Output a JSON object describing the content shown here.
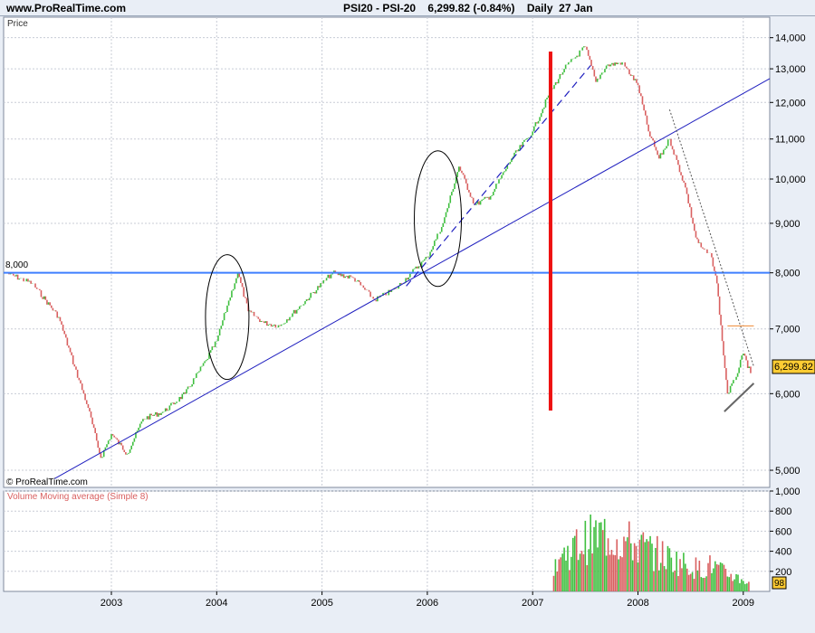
{
  "header": {
    "site": "www.ProRealTime.com",
    "symbol": "PSI20 - PSI-20",
    "last": "6,299.82",
    "change": "(-0.84%)",
    "period": "Daily",
    "date": "27 Jan"
  },
  "price_panel": {
    "label": "Price",
    "copyright": "© ProRealTime.com",
    "level_label": "8,000",
    "last_badge": "6,299.82"
  },
  "volume_panel": {
    "label": "Volume Moving average (Simple 8)",
    "last_badge": "98"
  },
  "colors": {
    "up": "#3fbf3f",
    "down": "#d96060",
    "trend": "#1f1fbf",
    "level": "#3f7fff",
    "marker": "#ee1111",
    "badge": "#ffcc33"
  },
  "chart_data": [
    {
      "type": "line",
      "title": "PSI20 - PSI-20",
      "ylabel": "Price",
      "yscale": "log",
      "ylim": [
        4800,
        14700
      ],
      "x_ticks": [
        "2003",
        "2004",
        "2005",
        "2006",
        "2007",
        "2008",
        "2009"
      ],
      "y_ticks": [
        5000,
        6000,
        7000,
        8000,
        9000,
        10000,
        11000,
        12000,
        13000,
        14000
      ],
      "y_tick_labels": [
        "5,000",
        "6,000",
        "7,000",
        "8,000",
        "9,000",
        "10,000",
        "11,000",
        "12,000",
        "13,000",
        "14,000"
      ],
      "series": [
        {
          "x": [
            2002.0,
            2002.25,
            2002.5,
            2002.65,
            2002.78,
            2002.9,
            2003.0,
            2003.15,
            2003.3,
            2003.5,
            2003.7,
            2003.9,
            2004.0,
            2004.1,
            2004.2,
            2004.3,
            2004.45,
            2004.6,
            2004.8,
            2005.0,
            2005.1,
            2005.3,
            2005.5,
            2005.7,
            2005.85,
            2006.0,
            2006.15,
            2006.3,
            2006.45,
            2006.6,
            2006.8,
            2007.0,
            2007.15,
            2007.3,
            2007.5,
            2007.6,
            2007.7,
            2007.85,
            2008.0,
            2008.1,
            2008.2,
            2008.3,
            2008.45,
            2008.55,
            2008.6,
            2008.7,
            2008.75,
            2008.8,
            2008.85,
            2008.92,
            2009.0,
            2009.07
          ],
          "values": [
            8000,
            7800,
            7200,
            6400,
            5800,
            5150,
            5450,
            5200,
            5650,
            5750,
            6000,
            6500,
            6800,
            7400,
            8000,
            7300,
            7100,
            7050,
            7400,
            7800,
            8000,
            7900,
            7500,
            7700,
            8000,
            8300,
            9000,
            10300,
            9400,
            9600,
            10500,
            11200,
            12200,
            13000,
            13700,
            12600,
            13100,
            13200,
            12500,
            11200,
            10500,
            11000,
            9800,
            8700,
            8500,
            8300,
            7800,
            6800,
            6000,
            6200,
            6600,
            6300
          ]
        }
      ],
      "annotations": {
        "horizontal_level": 8000,
        "last_value": 6299.82,
        "marker_line_x": 2007.17
      }
    },
    {
      "type": "bar",
      "title": "Volume Moving average (Simple 8)",
      "ylim": [
        0,
        1000
      ],
      "x_ticks": [
        "2003",
        "2004",
        "2005",
        "2006",
        "2007",
        "2008",
        "2009"
      ],
      "y_ticks": [
        200,
        400,
        600,
        800,
        1000
      ],
      "y_tick_labels": [
        "200",
        "400",
        "600",
        "800",
        "1,000"
      ],
      "x": [
        2007.2,
        2007.3,
        2007.4,
        2007.5,
        2007.6,
        2007.7,
        2007.8,
        2007.9,
        2008.0,
        2008.1,
        2008.2,
        2008.3,
        2008.4,
        2008.5,
        2008.6,
        2008.7,
        2008.8,
        2008.9,
        2009.0,
        2009.07
      ],
      "values": [
        330,
        420,
        500,
        570,
        620,
        650,
        600,
        560,
        520,
        470,
        420,
        380,
        330,
        290,
        250,
        300,
        220,
        180,
        130,
        98
      ],
      "last_value": 98
    }
  ]
}
